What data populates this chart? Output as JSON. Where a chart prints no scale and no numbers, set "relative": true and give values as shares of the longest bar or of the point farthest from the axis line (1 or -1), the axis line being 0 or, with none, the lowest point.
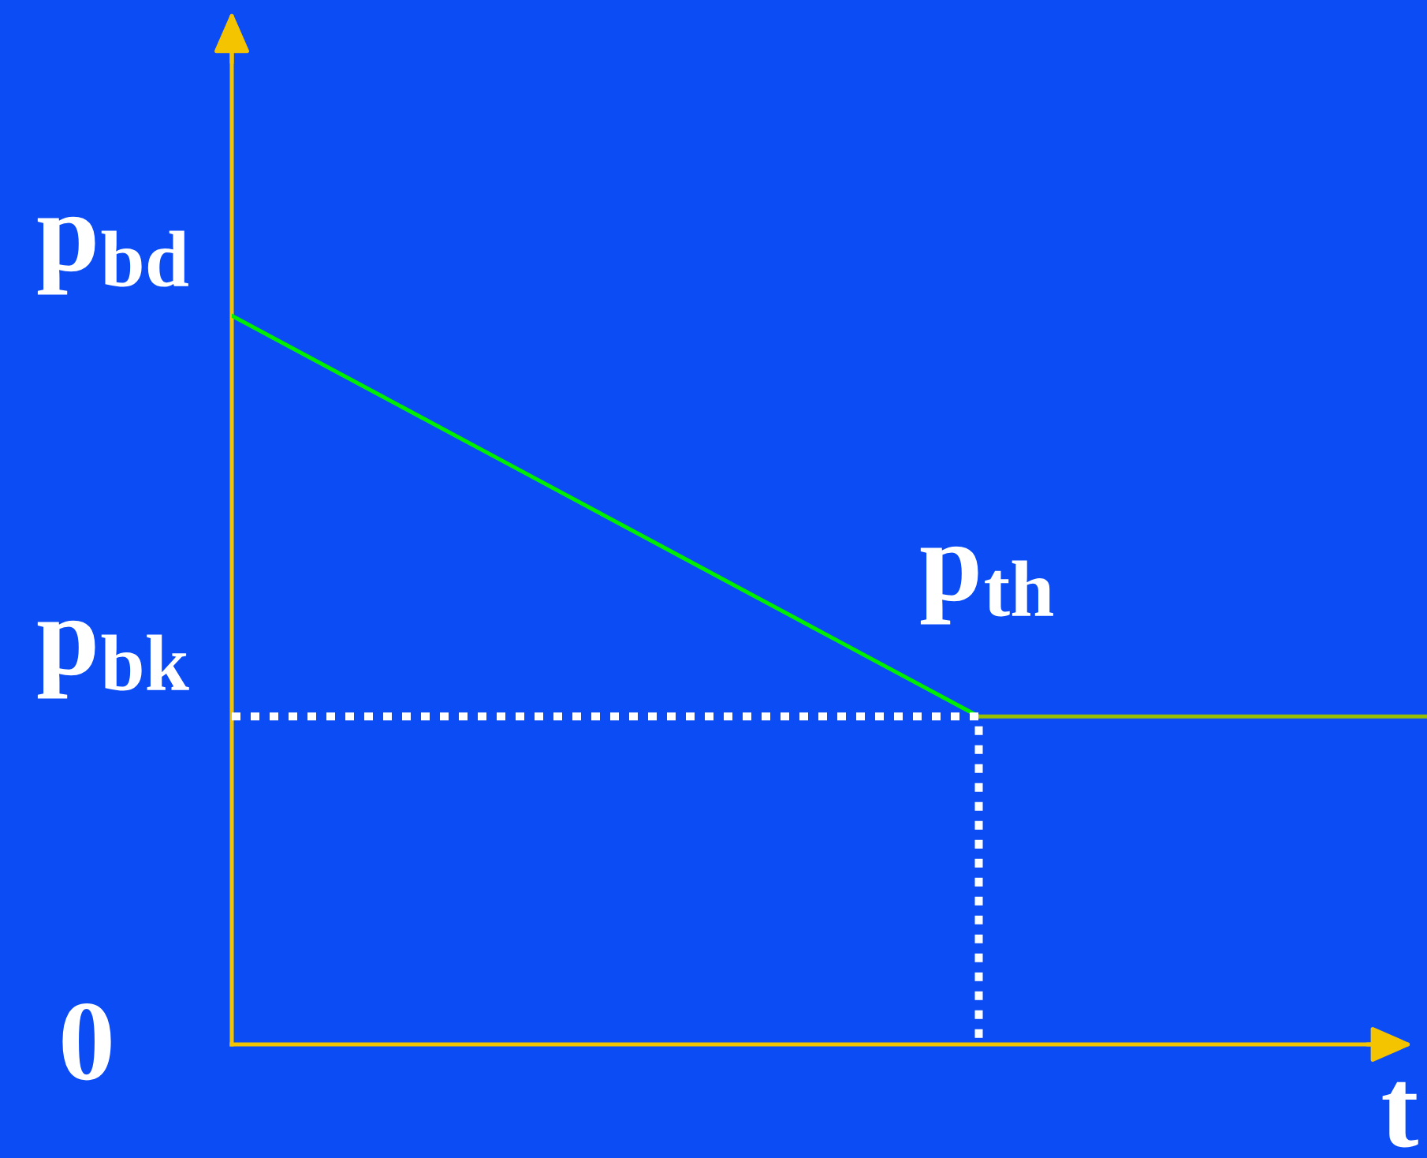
{
  "chart_data": {
    "type": "line",
    "relative": true,
    "line_style": "solid",
    "xlabel": "t",
    "categories": [
      null,
      null,
      null,
      null,
      null,
      null,
      null,
      null,
      null
    ],
    "series": [
      {
        "color": "#00ee00",
        "values": [
          1,
          0.89,
          0.78,
          0.67,
          0.56,
          0.45,
          null,
          null,
          null
        ]
      },
      {
        "color": "#99c000",
        "values": [
          null,
          null,
          null,
          null,
          null,
          0.45,
          0.45,
          0.45,
          0.45
        ]
      },
      {
        "type": "step",
        "color": "#ffffff",
        "line_style": "dotted",
        "values": [
          0.45,
          0.45,
          0.45,
          0.45,
          0.45,
          0,
          null,
          null,
          null
        ]
      }
    ],
    "annotations": [
      "p$_{bd}$",
      "p$_{bk}$",
      "0",
      "p$_{th}$"
    ]
  }
}
